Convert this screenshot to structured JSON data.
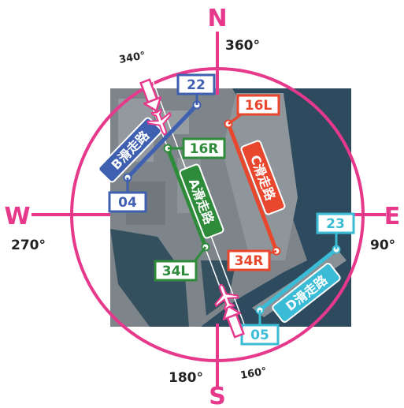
{
  "compass": {
    "north": "N",
    "south": "S",
    "east": "E",
    "west": "W",
    "deg_360": "360°",
    "deg_90": "90°",
    "deg_180": "180°",
    "deg_270": "270°",
    "deg_340": "340°",
    "deg_160": "160°"
  },
  "runways": {
    "a": {
      "name": "A滑走路",
      "end_north": "16R",
      "end_south": "34L",
      "color": "#2e8b3a"
    },
    "b": {
      "name": "B滑走路",
      "end_north": "22",
      "end_south": "04",
      "color": "#3f5fb0"
    },
    "c": {
      "name": "C滑走路",
      "end_north": "16L",
      "end_south": "34R",
      "color": "#e8472e"
    },
    "d": {
      "name": "D滑走路",
      "end_north": "23",
      "end_south": "05",
      "color": "#3bbcd6"
    }
  },
  "colors": {
    "compass_accent": "#e6398c",
    "water": "#2e4a5e",
    "land": "#8b9298"
  },
  "icons": {
    "aircraft": "airplane-icon",
    "approach_arrow": "arrow-icon"
  }
}
